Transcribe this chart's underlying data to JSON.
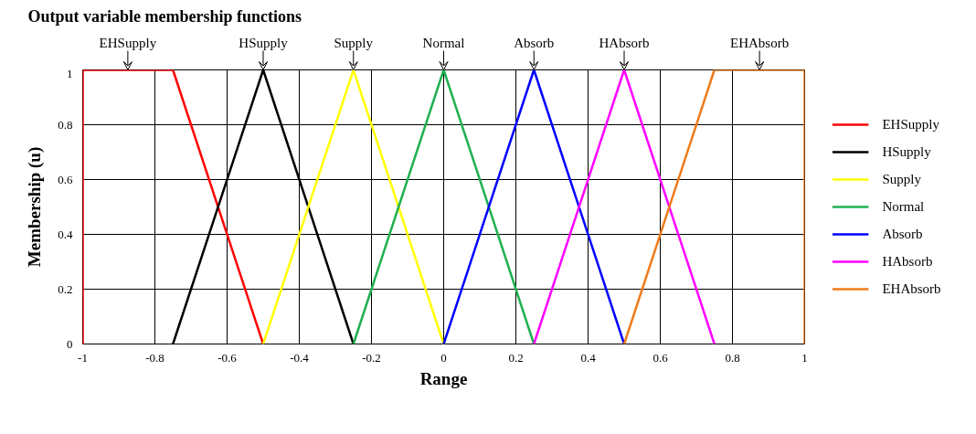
{
  "chart_data": {
    "type": "line",
    "title": "Output variable membership functions",
    "xlabel": "Range",
    "ylabel": "Membership (u)",
    "xlim": [
      -1,
      1
    ],
    "xticks": [
      -1,
      -0.8,
      -0.6,
      -0.4,
      -0.2,
      0,
      0.2,
      0.4,
      0.6,
      0.8,
      1
    ],
    "ylim": [
      0,
      1
    ],
    "yticks": [
      0,
      0.2,
      0.4,
      0.6,
      0.8,
      1
    ],
    "grid": true,
    "legend": "right",
    "marker": "none",
    "line_style": "solid",
    "series": [
      {
        "name": "EHSupply",
        "color": "#ff0000",
        "x": [
          -1,
          -1,
          -0.75,
          -0.5
        ],
        "values": [
          0,
          1,
          1,
          0
        ]
      },
      {
        "name": "HSupply",
        "color": "#000000",
        "x": [
          -0.75,
          -0.5,
          -0.25
        ],
        "values": [
          0,
          1,
          0
        ]
      },
      {
        "name": "Supply",
        "color": "#ffff00",
        "x": [
          -0.5,
          -0.25,
          0
        ],
        "values": [
          0,
          1,
          0
        ]
      },
      {
        "name": "Normal",
        "color": "#1fb050",
        "x": [
          -0.25,
          0,
          0.25
        ],
        "values": [
          0,
          1,
          0
        ]
      },
      {
        "name": "Absorb",
        "color": "#0000ff",
        "x": [
          0,
          0.25,
          0.5
        ],
        "values": [
          0,
          1,
          0
        ]
      },
      {
        "name": "HAbsorb",
        "color": "#ff00ff",
        "x": [
          0.25,
          0.5,
          0.75
        ],
        "values": [
          0,
          1,
          0
        ]
      },
      {
        "name": "EHAbsorb",
        "color": "#ef7b1a",
        "x": [
          0.5,
          0.75,
          1,
          1
        ],
        "values": [
          0,
          1,
          1,
          0
        ]
      }
    ],
    "annotations": [
      {
        "text": "EHSupply",
        "x": -0.875,
        "y": 1
      },
      {
        "text": "HSupply",
        "x": -0.5,
        "y": 1
      },
      {
        "text": "Supply",
        "x": -0.25,
        "y": 1
      },
      {
        "text": "Normal",
        "x": 0,
        "y": 1
      },
      {
        "text": "Absorb",
        "x": 0.25,
        "y": 1
      },
      {
        "text": "HAbsorb",
        "x": 0.5,
        "y": 1
      },
      {
        "text": "EHAbsorb",
        "x": 0.875,
        "y": 1
      }
    ]
  }
}
